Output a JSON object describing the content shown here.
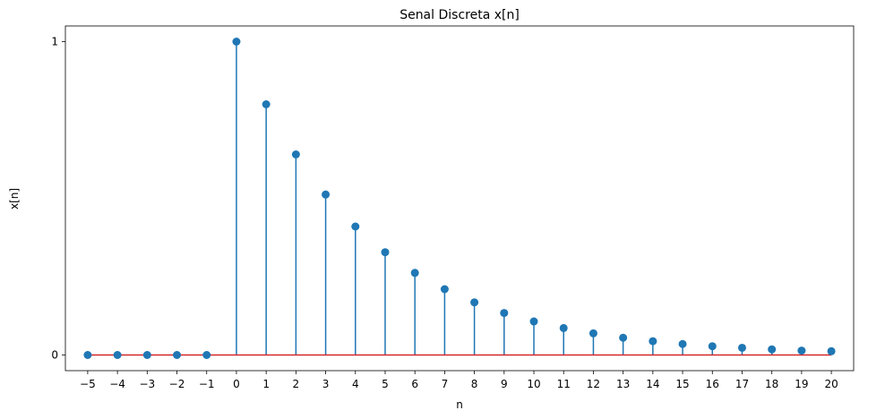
{
  "chart_data": {
    "type": "stem",
    "title": "Senal Discreta x[n]",
    "xlabel": "n",
    "ylabel": "x[n]",
    "x": [
      -5,
      -4,
      -3,
      -2,
      -1,
      0,
      1,
      2,
      3,
      4,
      5,
      6,
      7,
      8,
      9,
      10,
      11,
      12,
      13,
      14,
      15,
      16,
      17,
      18,
      19,
      20
    ],
    "y": [
      0,
      0,
      0,
      0,
      0,
      1,
      0.8,
      0.64,
      0.512,
      0.41,
      0.328,
      0.262,
      0.21,
      0.168,
      0.134,
      0.107,
      0.086,
      0.069,
      0.055,
      0.044,
      0.035,
      0.028,
      0.023,
      0.018,
      0.014,
      0.012
    ],
    "xticks": [
      "−5",
      "−4",
      "−3",
      "−2",
      "−1",
      "0",
      "1",
      "2",
      "3",
      "4",
      "5",
      "6",
      "7",
      "8",
      "9",
      "10",
      "11",
      "12",
      "13",
      "14",
      "15",
      "16",
      "17",
      "18",
      "19",
      "20"
    ],
    "yticks": [
      "0",
      "1"
    ],
    "xlim": [
      -5.75,
      20.75
    ],
    "ylim": [
      -0.05,
      1.05
    ],
    "grid": false,
    "colors": {
      "stem": "#1f77b4",
      "baseline": "#d62728"
    }
  }
}
